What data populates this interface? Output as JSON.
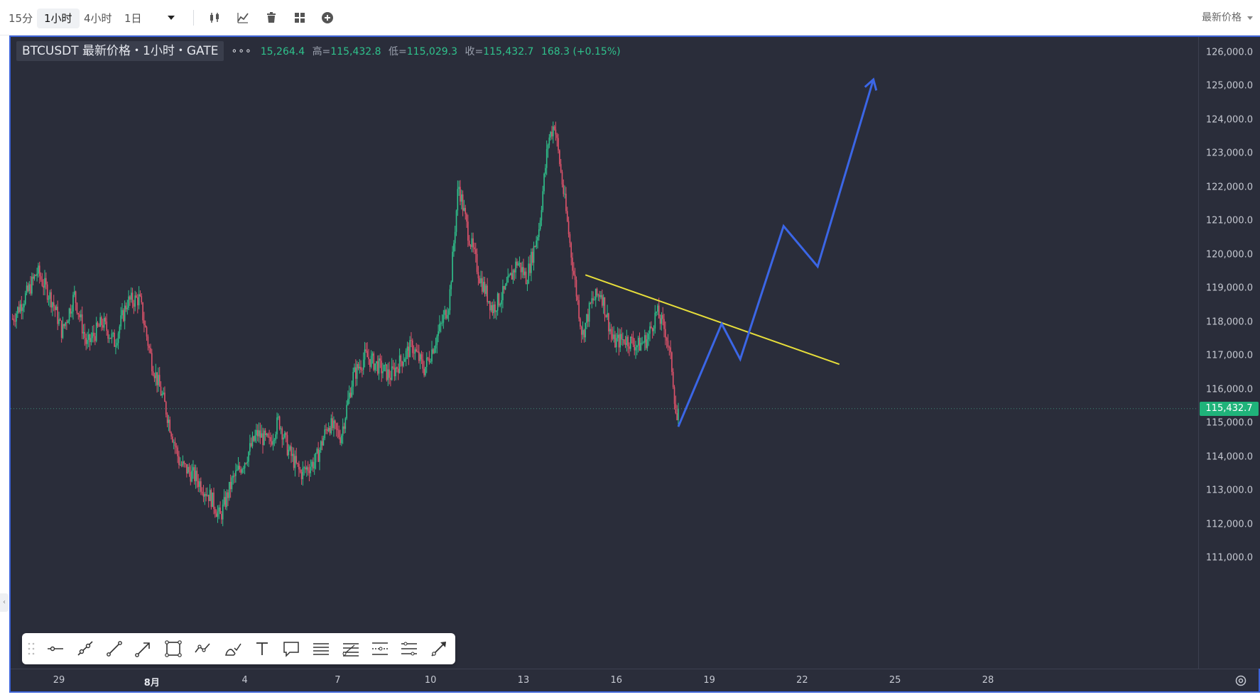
{
  "toolbar": {
    "timeframes": [
      "15分",
      "1小时",
      "4小时",
      "1日"
    ],
    "active_timeframe": "1小时",
    "price_type": "最新价格",
    "icons": [
      "candlestick-icon",
      "indicator-icon",
      "trash-icon",
      "layout-icon",
      "add-icon"
    ]
  },
  "legend": {
    "title": "BTCUSDT 最新价格・1小时・GATE",
    "more": "∘∘∘",
    "open_fragment": "15,264.4",
    "high_label": "高=",
    "high": "115,432.8",
    "low_label": "低=",
    "low": "115,029.3",
    "close_label": "收=",
    "close": "115,432.7",
    "change": "168.3 (+0.15%)"
  },
  "colors": {
    "background": "#2a2d3a",
    "up": "#2fc28c",
    "down": "#e0536b",
    "trendline": "#e7de3a",
    "projection": "#3b66e6",
    "frame_border": "#3d63d8"
  },
  "y_axis": {
    "ticks": [
      "126,000.0",
      "125,000.0",
      "124,000.0",
      "123,000.0",
      "122,000.0",
      "121,000.0",
      "120,000.0",
      "119,000.0",
      "118,000.0",
      "117,000.0",
      "116,000.0",
      "115,000.0",
      "114,000.0",
      "113,000.0",
      "112,000.0",
      "111,000.0"
    ],
    "current_price": "115,432.7"
  },
  "x_axis": {
    "ticks": [
      "29",
      "8月",
      "4",
      "7",
      "10",
      "13",
      "16",
      "19",
      "22",
      "25",
      "28"
    ]
  },
  "drawing_tools": [
    "horizontal-line-tool",
    "ray-tool",
    "trend-line-tool",
    "arrow-tool",
    "rectangle-tool",
    "polyline-tool",
    "brush-tool",
    "text-tool",
    "callout-tool",
    "parallel-channel-tool",
    "fib-retracement-tool",
    "fib-extension-tool",
    "gann-tool",
    "long-position-tool"
  ],
  "chart_data": {
    "type": "candlestick",
    "symbol": "BTCUSDT",
    "interval": "1小时",
    "exchange": "GATE",
    "ylim": [
      110200,
      126300
    ],
    "x_range_days": [
      "29",
      "8月",
      "4",
      "7",
      "10",
      "13",
      "16",
      "19",
      "22",
      "25",
      "28"
    ],
    "price_path": [
      {
        "day": 27.5,
        "close": 118100
      },
      {
        "day": 28.0,
        "close": 118900
      },
      {
        "day": 28.3,
        "close": 119500
      },
      {
        "day": 28.8,
        "close": 118600
      },
      {
        "day": 29.1,
        "close": 117700
      },
      {
        "day": 29.5,
        "close": 118800
      },
      {
        "day": 29.9,
        "close": 117300
      },
      {
        "day": 30.4,
        "close": 118000
      },
      {
        "day": 30.8,
        "close": 117400
      },
      {
        "day": 31.2,
        "close": 118600
      },
      {
        "day": 31.6,
        "close": 118700
      },
      {
        "day": 32.0,
        "close": 116800
      },
      {
        "day": 32.4,
        "close": 115600
      },
      {
        "day": 32.9,
        "close": 113800
      },
      {
        "day": 33.4,
        "close": 113400
      },
      {
        "day": 33.9,
        "close": 112800
      },
      {
        "day": 34.2,
        "close": 112200
      },
      {
        "day": 34.6,
        "close": 113300
      },
      {
        "day": 35.0,
        "close": 113900
      },
      {
        "day": 35.4,
        "close": 114700
      },
      {
        "day": 35.8,
        "close": 114400
      },
      {
        "day": 36.1,
        "close": 115100
      },
      {
        "day": 36.4,
        "close": 114200
      },
      {
        "day": 36.8,
        "close": 113500
      },
      {
        "day": 37.3,
        "close": 113900
      },
      {
        "day": 37.7,
        "close": 115000
      },
      {
        "day": 38.1,
        "close": 114600
      },
      {
        "day": 38.5,
        "close": 116400
      },
      {
        "day": 38.9,
        "close": 117000
      },
      {
        "day": 39.3,
        "close": 116700
      },
      {
        "day": 39.7,
        "close": 116400
      },
      {
        "day": 40.0,
        "close": 116800
      },
      {
        "day": 40.4,
        "close": 117300
      },
      {
        "day": 40.8,
        "close": 116600
      },
      {
        "day": 41.3,
        "close": 117800
      },
      {
        "day": 41.6,
        "close": 118600
      },
      {
        "day": 41.9,
        "close": 122100
      },
      {
        "day": 42.2,
        "close": 120700
      },
      {
        "day": 42.6,
        "close": 119300
      },
      {
        "day": 43.0,
        "close": 118400
      },
      {
        "day": 43.4,
        "close": 118900
      },
      {
        "day": 43.8,
        "close": 119800
      },
      {
        "day": 44.1,
        "close": 119300
      },
      {
        "day": 44.5,
        "close": 120800
      },
      {
        "day": 44.8,
        "close": 123400
      },
      {
        "day": 45.0,
        "close": 123900
      },
      {
        "day": 45.3,
        "close": 121800
      },
      {
        "day": 45.6,
        "close": 119600
      },
      {
        "day": 45.9,
        "close": 117600
      },
      {
        "day": 46.2,
        "close": 118600
      },
      {
        "day": 46.5,
        "close": 118900
      },
      {
        "day": 46.9,
        "close": 117400
      },
      {
        "day": 47.3,
        "close": 117500
      },
      {
        "day": 47.7,
        "close": 117300
      },
      {
        "day": 48.0,
        "close": 117500
      },
      {
        "day": 48.3,
        "close": 118300
      },
      {
        "day": 48.6,
        "close": 117700
      },
      {
        "day": 48.8,
        "close": 116600
      },
      {
        "day": 48.95,
        "close": 115000
      },
      {
        "day": 49.0,
        "close": 115433
      }
    ],
    "annotations": {
      "trendline": {
        "start": {
          "day": 46.0,
          "price": 119400
        },
        "end": {
          "day": 54.2,
          "price": 116750
        }
      },
      "projection_path": [
        {
          "day": 49.0,
          "price": 114900
        },
        {
          "day": 50.4,
          "price": 117950
        },
        {
          "day": 51.0,
          "price": 116900
        },
        {
          "day": 52.4,
          "price": 120850
        },
        {
          "day": 53.5,
          "price": 119650
        },
        {
          "day": 55.3,
          "price": 125200
        }
      ]
    },
    "last_price": 115432.7,
    "grid": false,
    "legend": "top-left"
  }
}
